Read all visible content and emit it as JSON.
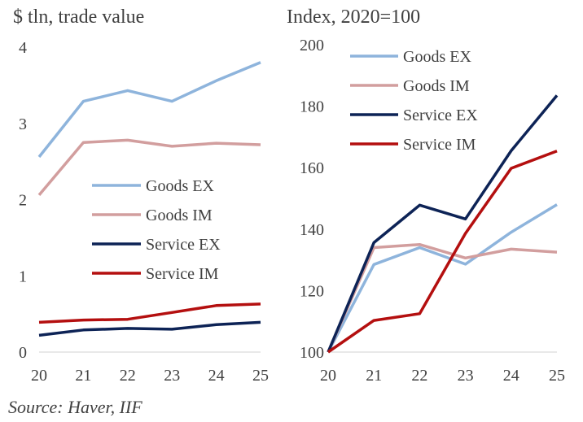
{
  "source": "Source: Haver, IIF",
  "colors": {
    "goods_ex": "#8eb4dc",
    "goods_im": "#d29e9e",
    "service_ex": "#0d2356",
    "service_im": "#b40f0f"
  },
  "chart_data": [
    {
      "type": "line",
      "title": "$ tln, trade value",
      "x": [
        "20",
        "21",
        "22",
        "23",
        "24",
        "25"
      ],
      "ylim": [
        0,
        4
      ],
      "yticks": [
        "0",
        "1",
        "2",
        "3",
        "4"
      ],
      "legend_position": "center-right",
      "grid": false,
      "series": [
        {
          "name": "Goods EX",
          "color_key": "goods_ex",
          "values": [
            2.56,
            3.29,
            3.43,
            3.29,
            3.56,
            3.8
          ]
        },
        {
          "name": "Goods IM",
          "color_key": "goods_im",
          "values": [
            2.06,
            2.75,
            2.78,
            2.7,
            2.74,
            2.72
          ]
        },
        {
          "name": "Service EX",
          "color_key": "service_ex",
          "values": [
            0.22,
            0.29,
            0.31,
            0.3,
            0.36,
            0.39
          ]
        },
        {
          "name": "Service IM",
          "color_key": "service_im",
          "values": [
            0.39,
            0.42,
            0.43,
            0.52,
            0.61,
            0.63
          ]
        }
      ]
    },
    {
      "type": "line",
      "title": "Index, 2020=100",
      "x": [
        "20",
        "21",
        "22",
        "23",
        "24",
        "25"
      ],
      "ylim": [
        100,
        200
      ],
      "yticks": [
        "100",
        "120",
        "140",
        "160",
        "180",
        "200"
      ],
      "legend_position": "top-right",
      "grid": false,
      "series": [
        {
          "name": "Goods EX",
          "color_key": "goods_ex",
          "values": [
            100,
            128.5,
            134,
            128.6,
            139,
            148
          ]
        },
        {
          "name": "Goods IM",
          "color_key": "goods_im",
          "values": [
            100,
            134,
            135,
            130.6,
            133.5,
            132.5
          ]
        },
        {
          "name": "Service EX",
          "color_key": "service_ex",
          "values": [
            100,
            135.6,
            147.8,
            143.3,
            165.5,
            183.5
          ]
        },
        {
          "name": "Service IM",
          "color_key": "service_im",
          "values": [
            100,
            110.3,
            112.5,
            138.6,
            159.8,
            165.4
          ]
        }
      ]
    }
  ]
}
